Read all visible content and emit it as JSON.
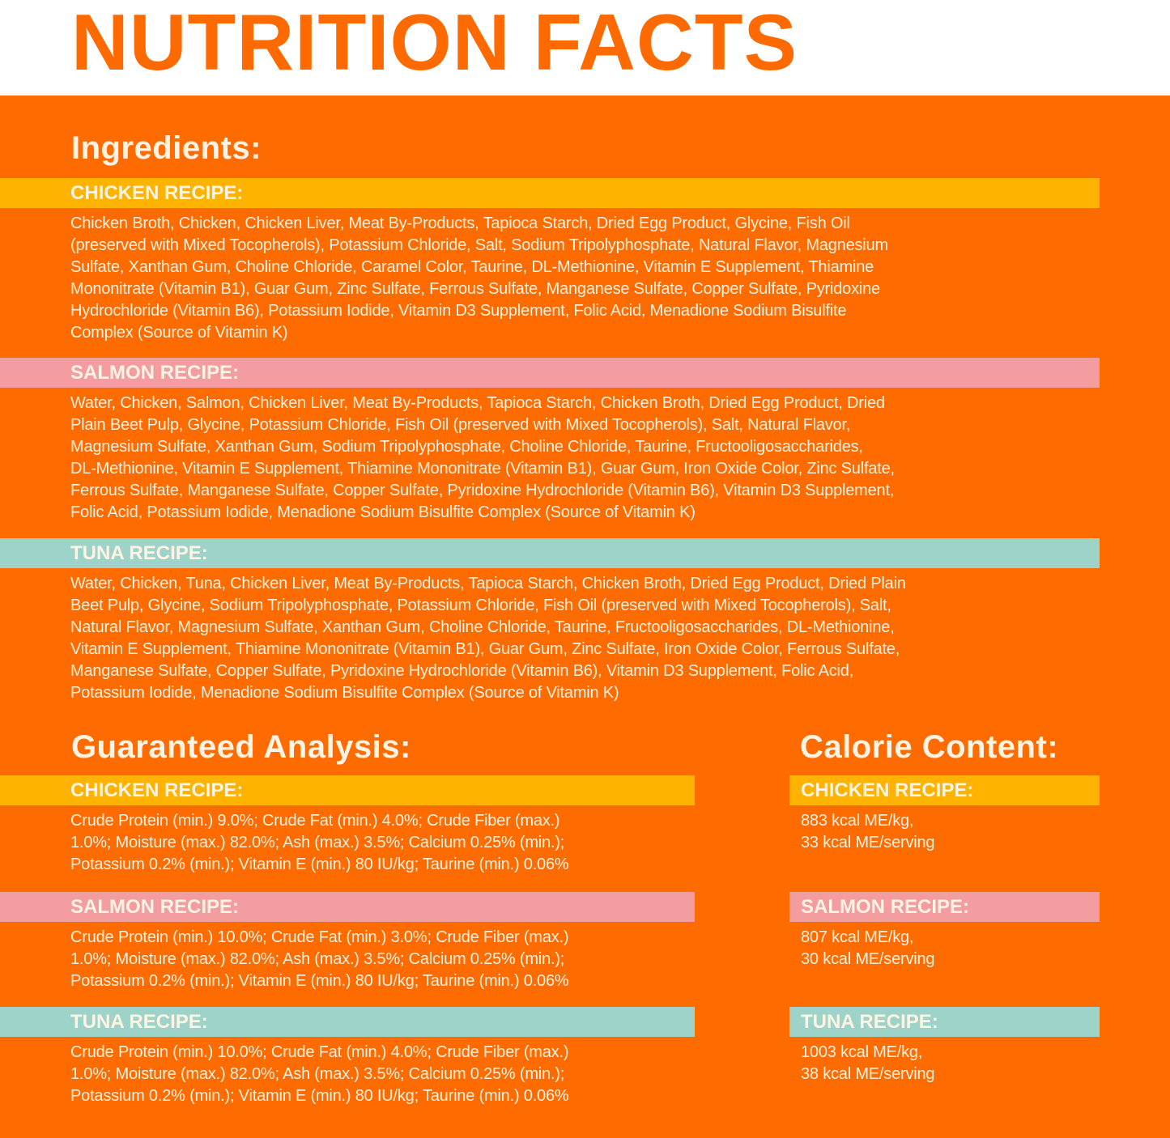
{
  "title": "NUTRITION FACTS",
  "colors": {
    "orange": "#FE6B00",
    "chicken": "#FDB300",
    "salmon": "#F39DA0",
    "tuna": "#9ED3C9",
    "text": "#FFF4E4"
  },
  "ingredients": {
    "heading": "Ingredients:",
    "chicken": {
      "label": "CHICKEN RECIPE:",
      "lines": [
        "Chicken Broth, Chicken, Chicken Liver, Meat By-Products, Tapioca Starch, Dried Egg Product, Glycine, Fish Oil",
        "(preserved with Mixed Tocopherols), Potassium Chloride, Salt, Sodium Tripolyphosphate, Natural Flavor, Magnesium",
        "Sulfate, Xanthan Gum, Choline Chloride, Caramel Color, Taurine, DL-Methionine, Vitamin E Supplement, Thiamine",
        "Mononitrate (Vitamin B1), Guar Gum, Zinc Sulfate, Ferrous Sulfate, Manganese Sulfate, Copper Sulfate, Pyridoxine",
        "Hydrochloride (Vitamin B6), Potassium Iodide, Vitamin D3 Supplement, Folic Acid, Menadione Sodium Bisulfite",
        "Complex (Source of Vitamin K)"
      ]
    },
    "salmon": {
      "label": "SALMON RECIPE:",
      "lines": [
        "Water, Chicken, Salmon, Chicken Liver, Meat By-Products, Tapioca Starch, Chicken Broth, Dried Egg Product, Dried",
        "Plain Beet Pulp, Glycine, Potassium Chloride, Fish Oil (preserved with Mixed Tocopherols), Salt, Natural Flavor,",
        "Magnesium Sulfate, Xanthan Gum, Sodium Tripolyphosphate, Choline Chloride, Taurine, Fructooligosaccharides,",
        "DL-Methionine, Vitamin E Supplement, Thiamine Mononitrate (Vitamin B1), Guar Gum, Iron Oxide Color, Zinc Sulfate,",
        "Ferrous Sulfate, Manganese Sulfate, Copper Sulfate, Pyridoxine Hydrochloride (Vitamin B6), Vitamin D3 Supplement,",
        "Folic Acid, Potassium Iodide, Menadione Sodium Bisulfite Complex (Source of Vitamin K)"
      ]
    },
    "tuna": {
      "label": "TUNA RECIPE:",
      "lines": [
        "Water, Chicken, Tuna, Chicken Liver, Meat By-Products, Tapioca Starch, Chicken Broth, Dried Egg Product, Dried Plain",
        "Beet Pulp, Glycine, Sodium Tripolyphosphate, Potassium Chloride, Fish Oil (preserved with Mixed Tocopherols), Salt,",
        "Natural Flavor, Magnesium Sulfate, Xanthan Gum, Choline Chloride, Taurine, Fructooligosaccharides, DL-Methionine,",
        "Vitamin E Supplement, Thiamine Mononitrate (Vitamin B1), Guar Gum, Zinc Sulfate, Iron Oxide Color, Ferrous Sulfate,",
        "Manganese Sulfate, Copper Sulfate, Pyridoxine Hydrochloride (Vitamin B6), Vitamin D3 Supplement, Folic Acid,",
        "Potassium Iodide, Menadione Sodium Bisulfite Complex (Source of Vitamin K)"
      ]
    }
  },
  "analysis": {
    "heading": "Guaranteed Analysis:",
    "chicken": {
      "label": "CHICKEN RECIPE:",
      "lines": [
        "Crude Protein (min.) 9.0%; Crude Fat (min.) 4.0%; Crude Fiber (max.)",
        "1.0%; Moisture (max.) 82.0%; Ash (max.) 3.5%; Calcium 0.25% (min.);",
        "Potassium 0.2% (min.); Vitamin E (min.) 80 IU/kg; Taurine (min.) 0.06%"
      ]
    },
    "salmon": {
      "label": "SALMON RECIPE:",
      "lines": [
        "Crude Protein (min.) 10.0%; Crude Fat (min.) 3.0%; Crude Fiber (max.)",
        "1.0%; Moisture (max.) 82.0%; Ash (max.) 3.5%; Calcium 0.25% (min.);",
        "Potassium 0.2% (min.); Vitamin E (min.) 80 IU/kg; Taurine (min.) 0.06%"
      ]
    },
    "tuna": {
      "label": "TUNA RECIPE:",
      "lines": [
        "Crude Protein (min.) 10.0%; Crude Fat (min.) 4.0%; Crude Fiber (max.)",
        "1.0%; Moisture (max.) 82.0%; Ash (max.) 3.5%; Calcium 0.25% (min.);",
        "Potassium 0.2% (min.); Vitamin E (min.) 80 IU/kg; Taurine (min.) 0.06%"
      ]
    }
  },
  "calories": {
    "heading": "Calorie Content:",
    "chicken": {
      "label": "CHICKEN RECIPE:",
      "lines": [
        "883 kcal ME/kg,",
        "33 kcal ME/serving"
      ]
    },
    "salmon": {
      "label": "SALMON RECIPE:",
      "lines": [
        "807 kcal ME/kg,",
        "30 kcal ME/serving"
      ]
    },
    "tuna": {
      "label": "TUNA RECIPE:",
      "lines": [
        "1003 kcal ME/kg,",
        "38 kcal ME/serving"
      ]
    }
  }
}
